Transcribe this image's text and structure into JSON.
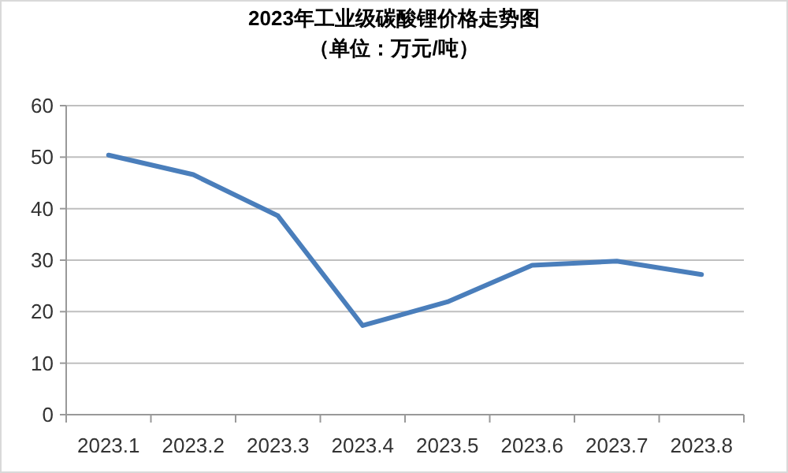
{
  "chart_data": {
    "type": "line",
    "title": "2023年工业级碳酸锂价格走势图",
    "subtitle": "（单位：万元/吨）",
    "categories": [
      "2023.1",
      "2023.2",
      "2023.3",
      "2023.4",
      "2023.5",
      "2023.6",
      "2023.7",
      "2023.8"
    ],
    "series": [
      {
        "color": "#4a7ebb",
        "values": [
          50.4,
          46.6,
          38.6,
          17.3,
          21.9,
          29.0,
          29.8,
          27.2
        ]
      }
    ],
    "ylim": [
      0,
      60
    ],
    "yticks": [
      0,
      10,
      20,
      30,
      40,
      50,
      60
    ],
    "grid": "y",
    "marker": "none",
    "line_style": "solid"
  }
}
